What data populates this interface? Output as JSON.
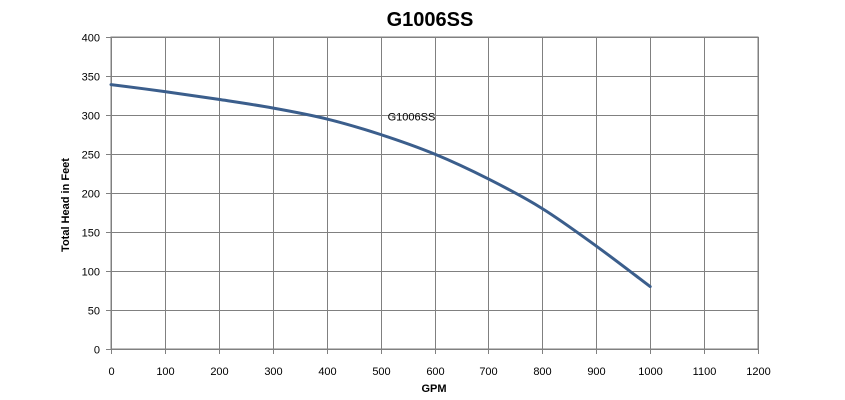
{
  "chart_data": {
    "type": "line",
    "title": "G1006SS",
    "xlabel": "GPM",
    "ylabel": "Total Head in Feet",
    "xlim": [
      0,
      1200
    ],
    "ylim": [
      0,
      400
    ],
    "x_ticks": [
      "0",
      "100",
      "200",
      "300",
      "400",
      "500",
      "600",
      "700",
      "800",
      "900",
      "1000",
      "1100",
      "1200"
    ],
    "y_ticks": [
      "0",
      "50",
      "100",
      "150",
      "200",
      "250",
      "300",
      "350",
      "400"
    ],
    "grid": true,
    "series": [
      {
        "name": "G1006SS",
        "color": "#3b5e8c",
        "x": [
          0,
          100,
          200,
          300,
          400,
          500,
          600,
          700,
          800,
          900,
          1000
        ],
        "y": [
          339,
          330,
          320,
          309,
          295,
          275,
          250,
          218,
          180,
          132,
          80
        ]
      }
    ]
  }
}
